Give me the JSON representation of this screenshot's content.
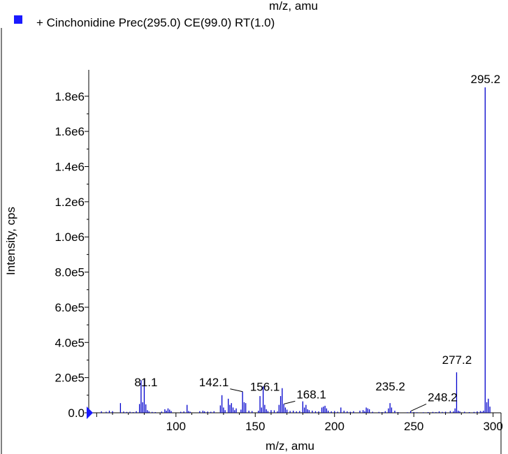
{
  "top_caption": "m/z, amu",
  "legend": {
    "label": "+ Cinchonidine Prec(295.0) CE(99.0) RT(1.0)",
    "color": "#1a1aff"
  },
  "colors": {
    "series": "#0000cc",
    "marker": "#1a1aff",
    "axis": "#000000"
  },
  "chart_data": {
    "type": "bar",
    "xlabel": "m/z, amu",
    "ylabel": "Intensity, cps",
    "xlim": [
      45,
      305
    ],
    "ylim": [
      0,
      1950000
    ],
    "x_ticks": [
      100,
      150,
      200,
      250,
      300
    ],
    "x_tick_labels": [
      "100",
      "150",
      "200",
      "250",
      "300"
    ],
    "y_ticks": [
      0,
      200000,
      400000,
      600000,
      800000,
      1000000,
      1200000,
      1400000,
      1600000,
      1800000
    ],
    "y_tick_labels": [
      "0.0",
      "2.0e5",
      "4.0e5",
      "6.0e5",
      "8.0e5",
      "1.0e6",
      "1.2e6",
      "1.4e6",
      "1.6e6",
      "1.8e6"
    ],
    "series": [
      {
        "x": [
          53,
          56,
          58,
          60,
          65,
          67,
          69,
          71,
          73,
          75,
          77,
          78,
          79,
          80,
          81,
          82,
          83,
          85,
          87,
          91,
          93,
          94,
          95,
          96,
          97,
          103,
          105,
          107,
          108,
          109,
          115,
          117,
          118,
          120,
          122,
          124,
          128,
          129,
          130,
          131,
          133,
          134,
          135,
          136,
          137,
          138,
          141,
          142,
          143,
          144,
          146,
          148,
          152,
          153,
          154,
          155,
          156,
          157,
          158,
          160,
          162,
          164,
          165,
          166,
          167,
          168,
          169,
          170,
          172,
          174,
          176,
          178,
          180,
          181,
          182,
          183,
          184,
          186,
          188,
          190,
          192,
          193,
          194,
          195,
          196,
          198,
          200,
          202,
          204,
          206,
          208,
          210,
          212,
          216,
          218,
          219,
          220,
          221,
          222,
          224,
          228,
          230,
          232,
          234,
          235,
          236,
          238,
          240,
          246,
          248,
          250,
          252,
          256,
          259,
          262,
          264,
          266,
          268,
          270,
          273,
          275,
          276,
          277,
          278,
          279,
          282,
          285,
          288,
          290,
          292,
          293,
          294,
          295,
          296,
          297,
          298
        ],
        "y": [
          8000,
          6000,
          12000,
          9000,
          55000,
          7000,
          5000,
          6000,
          4000,
          9000,
          50000,
          185000,
          60000,
          190000,
          48000,
          15000,
          8000,
          5000,
          4000,
          7000,
          20000,
          12000,
          25000,
          18000,
          10000,
          6000,
          8000,
          45000,
          10000,
          6000,
          9000,
          12000,
          8000,
          7000,
          6000,
          9000,
          42000,
          100000,
          30000,
          15000,
          80000,
          45000,
          55000,
          30000,
          15000,
          25000,
          18000,
          120000,
          60000,
          55000,
          12000,
          10000,
          12000,
          95000,
          30000,
          150000,
          45000,
          20000,
          10000,
          15000,
          14000,
          8000,
          45000,
          95000,
          140000,
          50000,
          30000,
          18000,
          10000,
          12000,
          8000,
          10000,
          65000,
          30000,
          45000,
          20000,
          15000,
          12000,
          9000,
          8000,
          30000,
          35000,
          40000,
          25000,
          12000,
          8000,
          10000,
          6000,
          30000,
          12000,
          8000,
          6000,
          9000,
          12000,
          15000,
          8000,
          30000,
          25000,
          20000,
          6000,
          5000,
          4000,
          9000,
          25000,
          55000,
          30000,
          12000,
          4000,
          3000,
          10000,
          4000,
          3000,
          3000,
          4000,
          5000,
          4000,
          8000,
          5000,
          6000,
          10000,
          8000,
          25000,
          230000,
          12000,
          8000,
          6000,
          4000,
          5000,
          8000,
          10000,
          6000,
          12000,
          1850000,
          60000,
          80000,
          35000
        ]
      }
    ],
    "peak_labels": [
      {
        "x": 81.1,
        "text": "81.1"
      },
      {
        "x": 142.1,
        "text": "142.1"
      },
      {
        "x": 156.1,
        "text": "156.1"
      },
      {
        "x": 168.1,
        "text": "168.1"
      },
      {
        "x": 235.2,
        "text": "235.2"
      },
      {
        "x": 248.2,
        "text": "248.2"
      },
      {
        "x": 277.2,
        "text": "277.2"
      },
      {
        "x": 295.2,
        "text": "295.2"
      }
    ]
  }
}
